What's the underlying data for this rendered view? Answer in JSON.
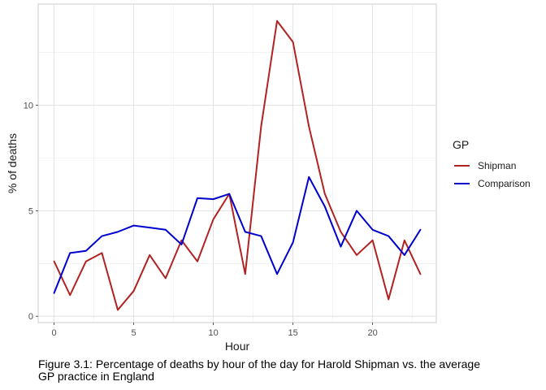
{
  "chart_data": {
    "type": "line",
    "xlabel": "Hour",
    "ylabel": "% of deaths",
    "xlim": [
      -1,
      24
    ],
    "ylim": [
      -0.3,
      14.8
    ],
    "x_ticks": [
      0,
      5,
      10,
      15,
      20
    ],
    "y_ticks": [
      0,
      5,
      10
    ],
    "x_tick_labels": [
      "0",
      "5",
      "10",
      "15",
      "20"
    ],
    "y_tick_labels": [
      "0",
      "5",
      "10"
    ],
    "grid": true,
    "legend": {
      "title": "GP",
      "position": "right"
    },
    "x": [
      0,
      1,
      2,
      3,
      4,
      5,
      6,
      7,
      8,
      9,
      10,
      11,
      12,
      13,
      14,
      15,
      16,
      17,
      18,
      19,
      20,
      21,
      22,
      23
    ],
    "series": [
      {
        "name": "Shipman",
        "color": "#b22222",
        "values": [
          2.6,
          1.0,
          2.6,
          3.0,
          0.3,
          1.2,
          2.9,
          1.8,
          3.6,
          2.6,
          4.6,
          5.8,
          2.0,
          9.0,
          14.0,
          13.0,
          9.0,
          5.8,
          4.0,
          2.9,
          3.6,
          0.8,
          3.6,
          2.0
        ]
      },
      {
        "name": "Comparison",
        "color": "#0000cd",
        "values": [
          1.1,
          3.0,
          3.1,
          3.8,
          4.0,
          4.3,
          4.2,
          4.1,
          3.4,
          5.6,
          5.55,
          5.8,
          4.0,
          3.8,
          2.0,
          3.5,
          6.6,
          5.2,
          3.3,
          5.0,
          4.1,
          3.8,
          2.9,
          4.1
        ]
      }
    ]
  },
  "caption": "Figure 3.1: Percentage of deaths by hour of the day for Harold Shipman vs. the average GP practice in England"
}
